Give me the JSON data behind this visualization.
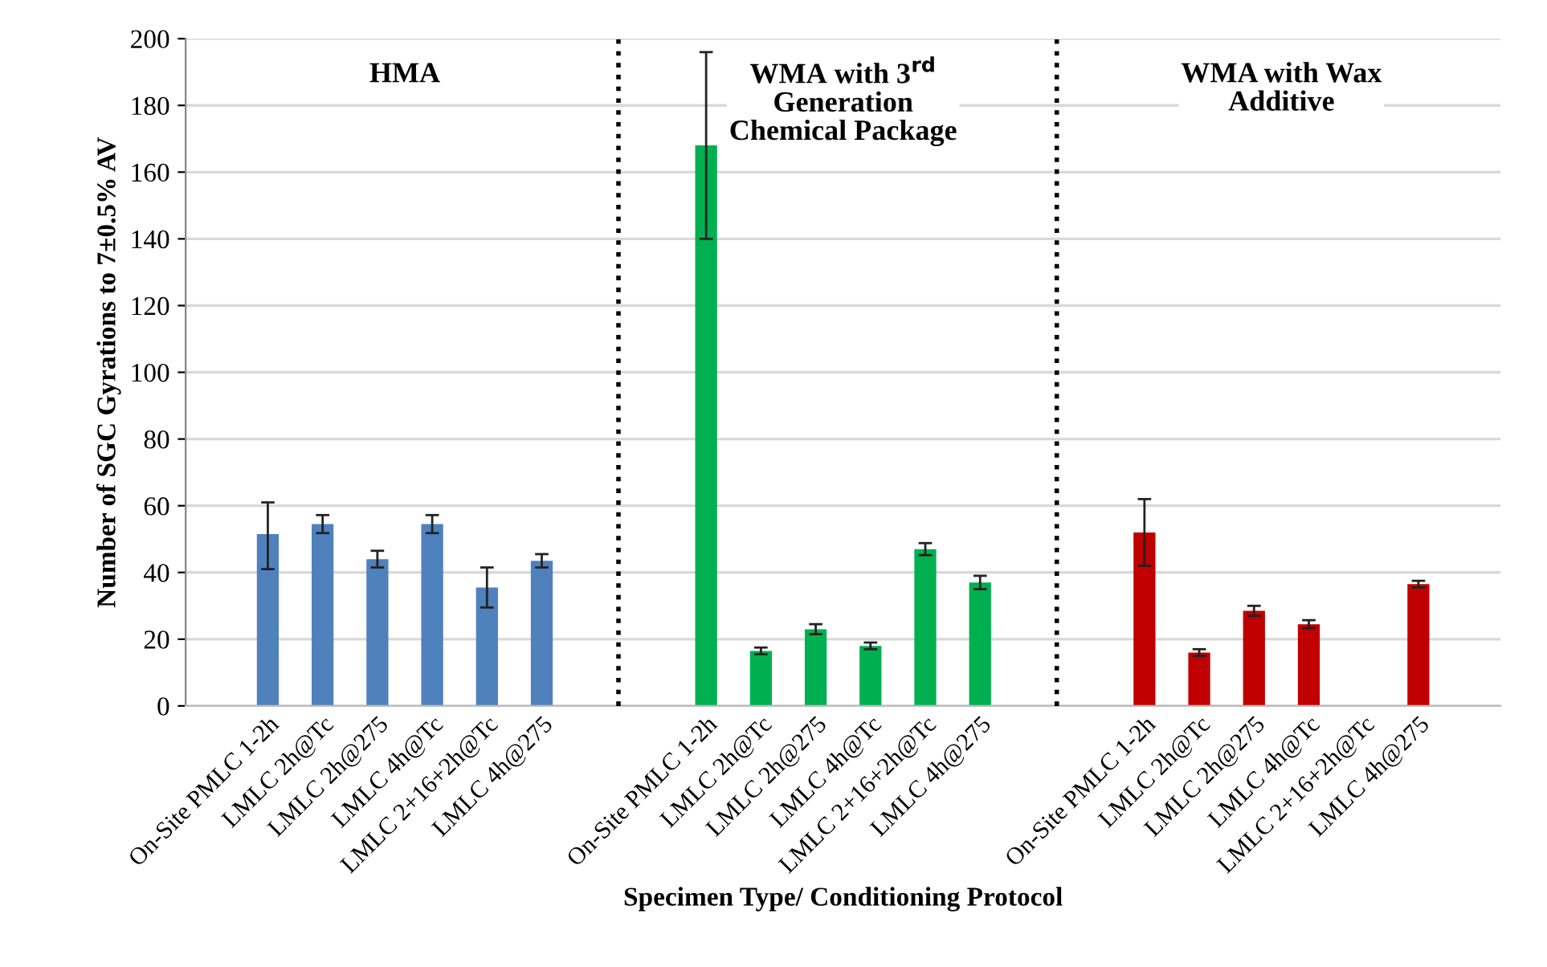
{
  "chart_data": {
    "type": "bar",
    "xlabel": "Specimen Type/ Conditioning Protocol",
    "ylabel": "Number of SGC Gyrations to 7±0.5% AV",
    "categories": [
      null,
      "On-Site PMLC 1-2h",
      "LMLC 2h@Tc",
      "LMLC 2h@275",
      "LMLC 4h@Tc",
      "LMLC 2+16+2h@Tc",
      "LMLC 4h@275",
      null,
      null,
      "On-Site PMLC 1-2h",
      "LMLC 2h@Tc",
      "LMLC 2h@275",
      "LMLC 4h@Tc",
      "LMLC 2+16+2h@Tc",
      "LMLC 4h@275",
      null,
      null,
      "On-Site PMLC 1-2h",
      "LMLC 2h@Tc",
      "LMLC 2h@275",
      "LMLC 4h@Tc",
      "LMLC 2+16+2h@Tc",
      "LMLC 4h@275",
      null
    ],
    "series": [
      {
        "color": "#4f81bd",
        "values": [
          null,
          51.5,
          54.5,
          44,
          54.5,
          35.5,
          43.5,
          null,
          null,
          null,
          null,
          null,
          null,
          null,
          null,
          null,
          null,
          null,
          null,
          null,
          null,
          null,
          null,
          null
        ],
        "errors": [
          null,
          [
            41,
            61
          ],
          2.7,
          2.5,
          2.7,
          6,
          2,
          null,
          null,
          null,
          null,
          null,
          null,
          null,
          null,
          null,
          null,
          null,
          null,
          null,
          null,
          null,
          null,
          null
        ]
      },
      {
        "color": "#00b050",
        "values": [
          null,
          null,
          null,
          null,
          null,
          null,
          null,
          null,
          null,
          168,
          16.5,
          23,
          18,
          47,
          37,
          null,
          null,
          null,
          null,
          null,
          null,
          null,
          null,
          null
        ],
        "errors": [
          null,
          null,
          null,
          null,
          null,
          null,
          null,
          null,
          null,
          [
            140,
            196
          ],
          1,
          1.5,
          1,
          1.8,
          2,
          null,
          null,
          null,
          null,
          null,
          null,
          null,
          null,
          null
        ]
      },
      {
        "color": "#c00000",
        "values": [
          null,
          null,
          null,
          null,
          null,
          null,
          null,
          null,
          null,
          null,
          null,
          null,
          null,
          null,
          null,
          null,
          null,
          52,
          16,
          28.5,
          24.5,
          null,
          36.5,
          null
        ],
        "errors": [
          null,
          null,
          null,
          null,
          null,
          null,
          null,
          null,
          null,
          null,
          null,
          null,
          null,
          null,
          null,
          null,
          null,
          [
            42,
            62
          ],
          1,
          1.5,
          1.2,
          null,
          1,
          null
        ]
      }
    ],
    "ylim": [
      0,
      200
    ],
    "yticks": [
      0,
      20,
      40,
      60,
      80,
      100,
      120,
      140,
      160,
      180,
      200
    ],
    "grid": "y",
    "annotations": [
      "HMA",
      "WMA with 3$^{rd}$\nGeneration\nChemical Package",
      "WMA with Wax\nAdditive"
    ]
  }
}
